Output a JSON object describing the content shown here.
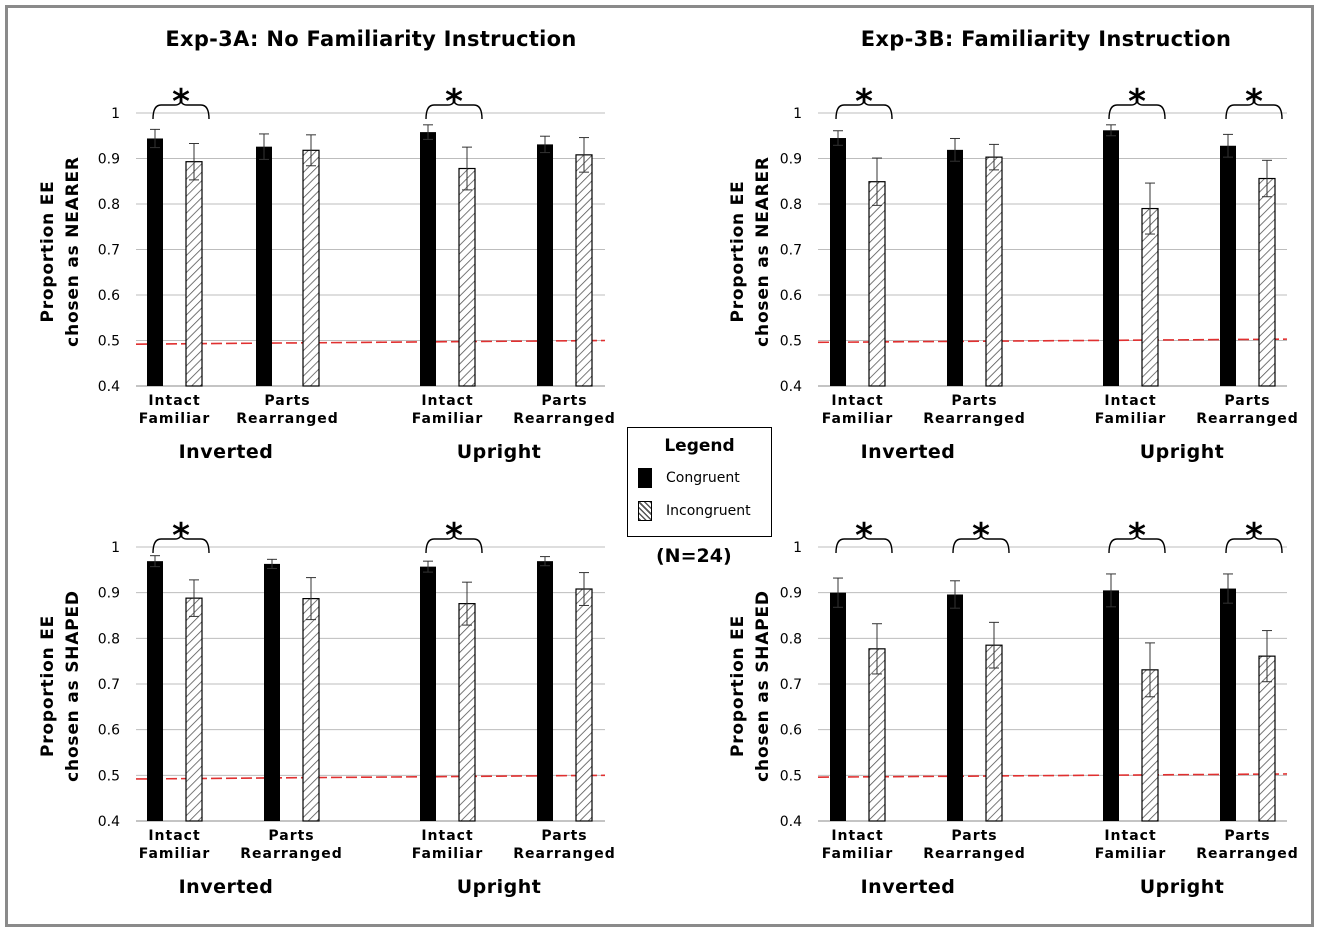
{
  "titles": {
    "left": "Exp-3A: No Familiarity Instruction",
    "right": "Exp-3B: Familiarity Instruction"
  },
  "legend": {
    "title": "Legend",
    "items": [
      {
        "label": "Congruent",
        "pattern": "solid"
      },
      {
        "label": "Incongruent",
        "pattern": "hatched"
      }
    ]
  },
  "sample_size": "(N=24)",
  "colors": {
    "congruent": "#000000",
    "incongruent_stroke": "#000000",
    "reference_line": "#e03030",
    "grid": "#bdbdbd",
    "frame": "#8a8a8a"
  },
  "chart_data": [
    {
      "type": "bar",
      "experiment": "Exp-3A: No Familiarity Instruction",
      "ylabel": [
        "Proportion EE",
        "chosen as NEARER"
      ],
      "ylim": [
        0.4,
        1
      ],
      "yticks": [
        "0.4",
        "0.5",
        "0.6",
        "0.7",
        "0.8",
        "0.9",
        "1"
      ],
      "groups": [
        "Inverted",
        "Upright"
      ],
      "categories": [
        [
          "Intact",
          "Familiar"
        ],
        [
          "Parts",
          "Rearranged"
        ],
        [
          "Intact",
          "Familiar"
        ],
        [
          "Parts",
          "Rearranged"
        ]
      ],
      "series": [
        {
          "name": "Congruent",
          "values": [
            0.944,
            0.926,
            0.958,
            0.931
          ],
          "errors": [
            0.02,
            0.028,
            0.016,
            0.018
          ]
        },
        {
          "name": "Incongruent",
          "values": [
            0.893,
            0.918,
            0.878,
            0.908
          ],
          "errors": [
            0.04,
            0.034,
            0.047,
            0.038
          ]
        }
      ],
      "significant": [
        true,
        false,
        true,
        false
      ],
      "reference_line": [
        0.492,
        0.5
      ]
    },
    {
      "type": "bar",
      "experiment": "Exp-3B: Familiarity Instruction",
      "ylabel": [
        "Proportion EE",
        "chosen as NEARER"
      ],
      "ylim": [
        0.4,
        1
      ],
      "yticks": [
        "0.4",
        "0.5",
        "0.6",
        "0.7",
        "0.8",
        "0.9",
        "1"
      ],
      "groups": [
        "Inverted",
        "Upright"
      ],
      "categories": [
        [
          "Intact",
          "Familiar"
        ],
        [
          "Parts",
          "Rearranged"
        ],
        [
          "Intact",
          "Familiar"
        ],
        [
          "Parts",
          "Rearranged"
        ]
      ],
      "series": [
        {
          "name": "Congruent",
          "values": [
            0.945,
            0.919,
            0.962,
            0.928
          ],
          "errors": [
            0.016,
            0.025,
            0.012,
            0.025
          ]
        },
        {
          "name": "Incongruent",
          "values": [
            0.849,
            0.903,
            0.79,
            0.856
          ],
          "errors": [
            0.052,
            0.028,
            0.056,
            0.04
          ]
        }
      ],
      "significant": [
        true,
        false,
        true,
        true
      ],
      "reference_line": [
        0.496,
        0.503
      ]
    },
    {
      "type": "bar",
      "experiment": "Exp-3A: No Familiarity Instruction",
      "ylabel": [
        "Proportion EE",
        "chosen as SHAPED"
      ],
      "ylim": [
        0.4,
        1
      ],
      "yticks": [
        "0.4",
        "0.5",
        "0.6",
        "0.7",
        "0.8",
        "0.9",
        "1"
      ],
      "groups": [
        "Inverted",
        "Upright"
      ],
      "categories": [
        [
          "Intact",
          "Familiar"
        ],
        [
          "Parts",
          "Rearranged"
        ],
        [
          "Intact",
          "Familiar"
        ],
        [
          "Parts",
          "Rearranged"
        ]
      ],
      "series": [
        {
          "name": "Congruent",
          "values": [
            0.969,
            0.963,
            0.957,
            0.969
          ],
          "errors": [
            0.012,
            0.01,
            0.012,
            0.01
          ]
        },
        {
          "name": "Incongruent",
          "values": [
            0.888,
            0.887,
            0.876,
            0.908
          ],
          "errors": [
            0.04,
            0.046,
            0.047,
            0.036
          ]
        }
      ],
      "significant": [
        true,
        false,
        true,
        false
      ],
      "reference_line": [
        0.492,
        0.5
      ]
    },
    {
      "type": "bar",
      "experiment": "Exp-3B: Familiarity Instruction",
      "ylabel": [
        "Proportion EE",
        "chosen as SHAPED"
      ],
      "ylim": [
        0.4,
        1
      ],
      "yticks": [
        "0.4",
        "0.5",
        "0.6",
        "0.7",
        "0.8",
        "0.9",
        "1"
      ],
      "groups": [
        "Inverted",
        "Upright"
      ],
      "categories": [
        [
          "Intact",
          "Familiar"
        ],
        [
          "Parts",
          "Rearranged"
        ],
        [
          "Intact",
          "Familiar"
        ],
        [
          "Parts",
          "Rearranged"
        ]
      ],
      "series": [
        {
          "name": "Congruent",
          "values": [
            0.9,
            0.896,
            0.905,
            0.909
          ],
          "errors": [
            0.032,
            0.03,
            0.036,
            0.032
          ]
        },
        {
          "name": "Incongruent",
          "values": [
            0.777,
            0.785,
            0.731,
            0.761
          ],
          "errors": [
            0.055,
            0.05,
            0.059,
            0.056
          ]
        }
      ],
      "significant": [
        true,
        true,
        true,
        true
      ],
      "reference_line": [
        0.496,
        0.503
      ]
    }
  ]
}
